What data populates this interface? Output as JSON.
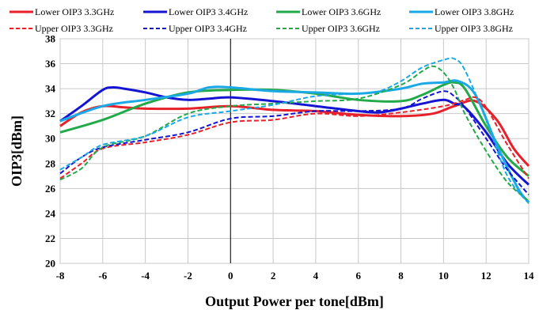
{
  "chart_data": {
    "type": "line",
    "xlabel": "Output Power per tone[dBm]",
    "ylabel": "OIP3[dBm]",
    "xlim": [
      -8,
      14
    ],
    "ylim": [
      20,
      38
    ],
    "xticks": [
      -8,
      -6,
      -4,
      -2,
      0,
      2,
      4,
      6,
      8,
      10,
      12,
      14
    ],
    "yticks": [
      20,
      22,
      24,
      26,
      28,
      30,
      32,
      34,
      36,
      38
    ],
    "grid": true,
    "legend_position": "top",
    "reference_line_x": 0,
    "series": [
      {
        "name": "Lower OIP3 3.3GHz",
        "color": "#e8202a",
        "dash": false,
        "x": [
          -8,
          -7,
          -6,
          -5,
          -4,
          -2,
          0,
          2,
          4,
          6,
          8,
          9.5,
          10.5,
          11.5,
          12.5,
          13.3,
          14
        ],
        "y": [
          31.0,
          32.1,
          32.6,
          32.5,
          32.4,
          32.4,
          32.6,
          32.3,
          32.2,
          31.9,
          31.8,
          32.0,
          32.6,
          33.0,
          31.5,
          29.2,
          27.8
        ]
      },
      {
        "name": "Lower OIP3 3.4GHz",
        "color": "#1414d2",
        "dash": false,
        "x": [
          -8,
          -7,
          -6,
          -5.5,
          -5,
          -4,
          -3,
          -2,
          -1,
          0,
          2,
          4,
          6,
          7,
          8,
          9,
          10,
          10.5,
          11,
          12,
          13,
          14
        ],
        "y": [
          31.4,
          32.6,
          33.9,
          34.1,
          34.0,
          33.7,
          33.3,
          33.1,
          33.2,
          33.3,
          33.0,
          32.6,
          32.2,
          32.1,
          32.4,
          32.8,
          33.1,
          32.8,
          32.5,
          30.5,
          28.0,
          26.3
        ]
      },
      {
        "name": "Lower OIP3 3.6GHz",
        "color": "#22aa4a",
        "dash": false,
        "x": [
          -8,
          -6,
          -4,
          -2,
          0,
          2,
          4,
          6,
          8,
          9,
          10,
          10.5,
          11,
          12,
          13,
          14
        ],
        "y": [
          30.5,
          31.5,
          32.8,
          33.7,
          33.9,
          33.9,
          33.6,
          33.1,
          33.0,
          33.5,
          34.3,
          34.5,
          34.0,
          31.0,
          28.5,
          27.0
        ]
      },
      {
        "name": "Lower OIP3 3.8GHz",
        "color": "#1ba8e6",
        "dash": false,
        "x": [
          -8,
          -6,
          -4,
          -2,
          -1,
          0,
          2,
          4,
          6,
          8,
          9,
          10,
          10.7,
          11.5,
          12.5,
          13.5,
          14
        ],
        "y": [
          31.4,
          32.6,
          33.1,
          33.6,
          34.1,
          34.1,
          33.8,
          33.7,
          33.6,
          34.0,
          34.4,
          34.5,
          34.6,
          33.5,
          29.5,
          26.0,
          24.9
        ]
      },
      {
        "name": "Upper OIP3 3.3GHz",
        "color": "#e8202a",
        "dash": true,
        "x": [
          -8,
          -7,
          -6,
          -4,
          -2,
          0,
          2,
          4,
          6,
          8,
          10,
          11,
          11.5,
          12,
          13,
          14
        ],
        "y": [
          26.8,
          28.0,
          29.2,
          29.7,
          30.3,
          31.3,
          31.5,
          32.0,
          31.8,
          32.1,
          32.6,
          33.1,
          33.3,
          32.5,
          29.5,
          26.8
        ]
      },
      {
        "name": "Upper OIP3 3.4GHz",
        "color": "#1414d2",
        "dash": true,
        "x": [
          -8,
          -7,
          -6,
          -4,
          -2,
          0,
          2,
          4,
          6,
          8,
          9,
          10,
          10.5,
          11,
          12,
          13,
          14
        ],
        "y": [
          27.2,
          28.5,
          29.3,
          29.9,
          30.5,
          31.6,
          31.8,
          32.2,
          32.2,
          32.4,
          33.2,
          33.8,
          33.4,
          32.5,
          30.0,
          27.5,
          25.5
        ]
      },
      {
        "name": "Upper OIP3 3.6GHz",
        "color": "#22aa4a",
        "dash": true,
        "x": [
          -8,
          -7,
          -6,
          -4,
          -2,
          0,
          2,
          4,
          6,
          8,
          9,
          9.5,
          10,
          10.5,
          11,
          12,
          13,
          14
        ],
        "y": [
          26.7,
          27.6,
          29.3,
          30.2,
          32.0,
          32.6,
          32.8,
          33.0,
          33.2,
          34.3,
          35.4,
          35.8,
          35.3,
          34.0,
          32.0,
          29.0,
          26.5,
          25.0
        ]
      },
      {
        "name": "Upper OIP3 3.8GHz",
        "color": "#1ba8e6",
        "dash": true,
        "x": [
          -8,
          -7,
          -6,
          -4,
          -2,
          0,
          2,
          4,
          6,
          7,
          8,
          9,
          10,
          10.5,
          11,
          12,
          13,
          14
        ],
        "y": [
          27.5,
          28.5,
          29.5,
          30.2,
          31.7,
          32.2,
          32.7,
          33.4,
          33.6,
          33.8,
          34.6,
          35.7,
          36.3,
          36.4,
          35.5,
          31.5,
          27.0,
          24.8
        ]
      }
    ]
  }
}
